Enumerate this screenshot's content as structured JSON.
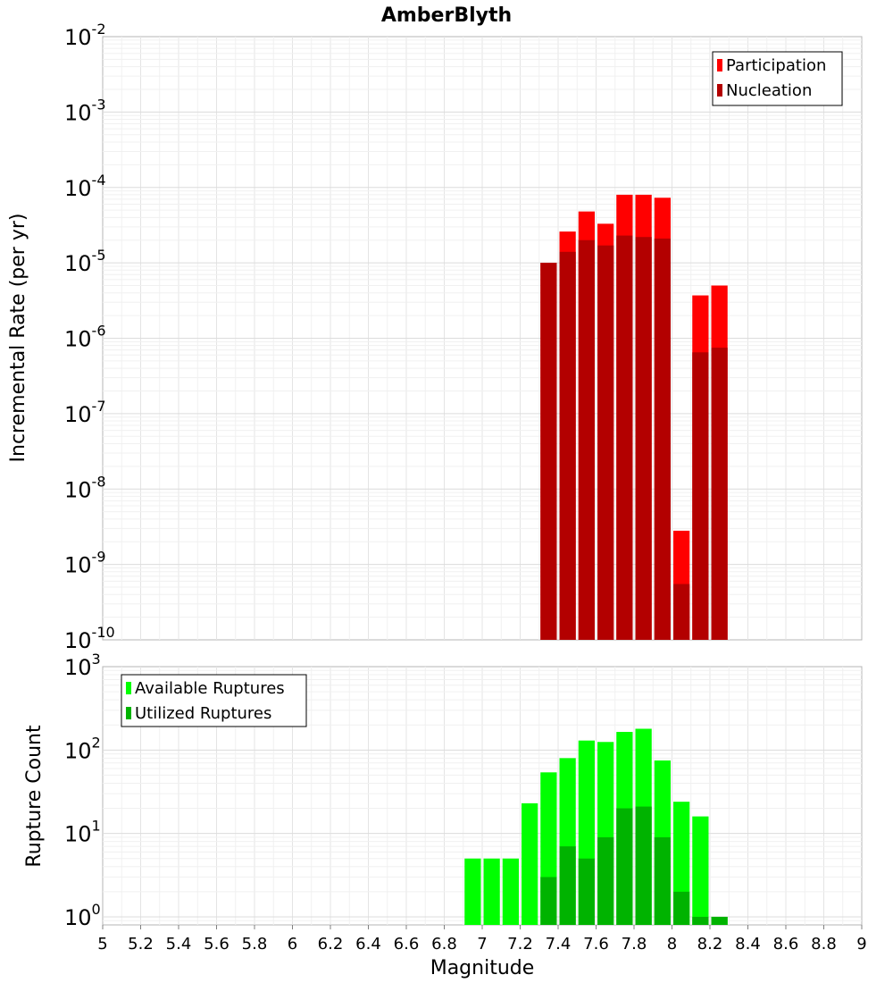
{
  "chart_data": [
    {
      "type": "bar",
      "title": "AmberBlyth",
      "xlabel": "",
      "ylabel": "Incremental Rate (per yr)",
      "yscale": "log",
      "ylim": [
        1e-10,
        0.01
      ],
      "xlim": [
        5,
        9
      ],
      "ytick_exponents": [
        -2,
        -3,
        -4,
        -5,
        -6,
        -7,
        -8,
        -9,
        -10
      ],
      "bin_width": 0.1,
      "grid": true,
      "legend_position": "top-right",
      "series": [
        {
          "name": "Participation",
          "color": "#ff0000",
          "points": [
            {
              "x": 7.35,
              "y": 1e-05
            },
            {
              "x": 7.45,
              "y": 2.6e-05
            },
            {
              "x": 7.55,
              "y": 4.8e-05
            },
            {
              "x": 7.65,
              "y": 3.3e-05
            },
            {
              "x": 7.75,
              "y": 8e-05
            },
            {
              "x": 7.85,
              "y": 8e-05
            },
            {
              "x": 7.95,
              "y": 7.3e-05
            },
            {
              "x": 8.05,
              "y": 2.8e-09
            },
            {
              "x": 8.15,
              "y": 3.7e-06
            },
            {
              "x": 8.25,
              "y": 5e-06
            }
          ]
        },
        {
          "name": "Nucleation",
          "color": "#b30000",
          "points": [
            {
              "x": 7.35,
              "y": 1e-05
            },
            {
              "x": 7.45,
              "y": 1.4e-05
            },
            {
              "x": 7.55,
              "y": 2e-05
            },
            {
              "x": 7.65,
              "y": 1.7e-05
            },
            {
              "x": 7.75,
              "y": 2.3e-05
            },
            {
              "x": 7.85,
              "y": 2.2e-05
            },
            {
              "x": 7.95,
              "y": 2.1e-05
            },
            {
              "x": 8.05,
              "y": 5.5e-10
            },
            {
              "x": 8.15,
              "y": 6.5e-07
            },
            {
              "x": 8.25,
              "y": 7.5e-07
            }
          ]
        }
      ]
    },
    {
      "type": "bar",
      "title": "",
      "xlabel": "Magnitude",
      "ylabel": "Rupture Count",
      "yscale": "log",
      "ylim": [
        0.8,
        1000
      ],
      "xlim": [
        5,
        9
      ],
      "ytick_exponents": [
        3,
        2,
        1,
        0
      ],
      "xticks": [
        "5",
        "5.2",
        "5.4",
        "5.6",
        "5.8",
        "6",
        "6.2",
        "6.4",
        "6.6",
        "6.8",
        "7",
        "7.2",
        "7.4",
        "7.6",
        "7.8",
        "8",
        "8.2",
        "8.4",
        "8.6",
        "8.8",
        "9"
      ],
      "bin_width": 0.1,
      "grid": true,
      "legend_position": "top-left",
      "series": [
        {
          "name": "Available Ruptures",
          "color": "#00ff00",
          "points": [
            {
              "x": 6.95,
              "y": 5
            },
            {
              "x": 7.05,
              "y": 5
            },
            {
              "x": 7.15,
              "y": 5
            },
            {
              "x": 7.25,
              "y": 23
            },
            {
              "x": 7.35,
              "y": 54
            },
            {
              "x": 7.45,
              "y": 80
            },
            {
              "x": 7.55,
              "y": 130
            },
            {
              "x": 7.65,
              "y": 125
            },
            {
              "x": 7.75,
              "y": 165
            },
            {
              "x": 7.85,
              "y": 180
            },
            {
              "x": 7.95,
              "y": 75
            },
            {
              "x": 8.05,
              "y": 24
            },
            {
              "x": 8.15,
              "y": 16
            },
            {
              "x": 8.25,
              "y": 1
            }
          ]
        },
        {
          "name": "Utilized Ruptures",
          "color": "#00b300",
          "points": [
            {
              "x": 7.35,
              "y": 3
            },
            {
              "x": 7.45,
              "y": 7
            },
            {
              "x": 7.55,
              "y": 5
            },
            {
              "x": 7.65,
              "y": 9
            },
            {
              "x": 7.75,
              "y": 20
            },
            {
              "x": 7.85,
              "y": 21
            },
            {
              "x": 7.95,
              "y": 9
            },
            {
              "x": 8.05,
              "y": 2
            },
            {
              "x": 8.15,
              "y": 1
            },
            {
              "x": 8.25,
              "y": 1
            }
          ]
        }
      ]
    }
  ]
}
